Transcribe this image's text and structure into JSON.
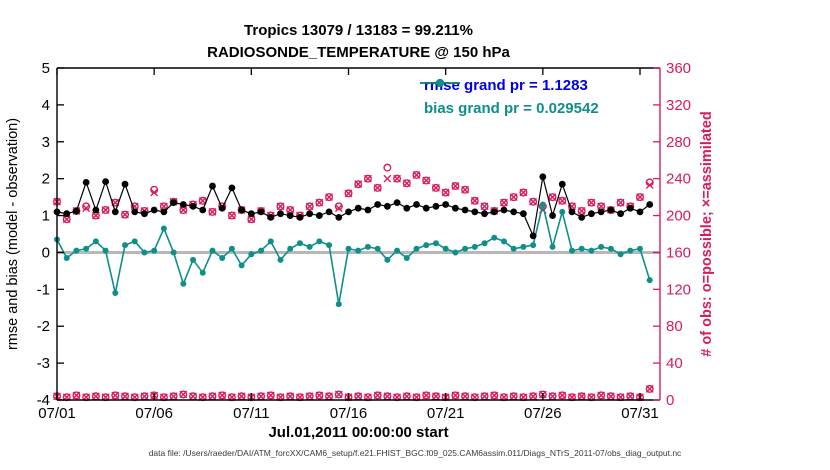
{
  "title": {
    "line1": "Tropics 13079 / 13183 = 99.211%",
    "line2": "RADIOSONDE_TEMPERATURE @ 150 hPa"
  },
  "axes": {
    "left_label": "rmse and bias (model - observation)",
    "right_label": "# of obs: o=possible; ×=assimilated",
    "x_label": "Jul.01,2011 00:00:00 start",
    "left_ticks": [
      -4,
      -3,
      -2,
      -1,
      0,
      1,
      2,
      3,
      4,
      5
    ],
    "right_ticks": [
      0,
      40,
      80,
      120,
      160,
      200,
      240,
      280,
      320,
      360
    ],
    "x_ticks": [
      "07/01",
      "07/06",
      "07/11",
      "07/16",
      "07/21",
      "07/26",
      "07/31"
    ],
    "x_tick_days": [
      1,
      6,
      11,
      16,
      21,
      26,
      31
    ],
    "left_range": [
      -4,
      5
    ],
    "right_range": [
      0,
      360
    ],
    "left_color": "#000000",
    "right_color": "#d81b60"
  },
  "legend": [
    {
      "label": "rmse grand pr = 1.1283",
      "line_color": "#000000",
      "text_color": "#0000e6"
    },
    {
      "label": "bias grand pr = 0.029542",
      "line_color": "#0f8f8a",
      "text_color": "#0f8f8a"
    }
  ],
  "footer": "data file: /Users/raeder/DAI/ATM_forcXX/CAM6_setup/f.e21.FHIST_BGC.f09_025.CAM6assim.011/Diags_NTrS_2011-07/obs_diag_output.nc",
  "chart_data": {
    "type": "line",
    "title": "Tropics 13079 / 13183 = 99.211% | RADIOSONDE_TEMPERATURE @ 150 hPa",
    "xlabel": "Jul.01,2011 00:00:00 start",
    "ylabel_left": "rmse and bias (model - observation)",
    "ylabel_right": "# of obs: o=possible; ×=assimilated",
    "ylim_left": [
      -4,
      5
    ],
    "ylim_right": [
      0,
      360
    ],
    "grid": false,
    "zero_line": true,
    "x_days": [
      1,
      1.5,
      2,
      2.5,
      3,
      3.5,
      4,
      4.5,
      5,
      5.5,
      6,
      6.5,
      7,
      7.5,
      8,
      8.5,
      9,
      9.5,
      10,
      10.5,
      11,
      11.5,
      12,
      12.5,
      13,
      13.5,
      14,
      14.5,
      15,
      15.5,
      16,
      16.5,
      17,
      17.5,
      18,
      18.5,
      19,
      19.5,
      20,
      20.5,
      21,
      21.5,
      22,
      22.5,
      23,
      23.5,
      24,
      24.5,
      25,
      25.5,
      26,
      26.5,
      27,
      27.5,
      28,
      28.5,
      29,
      29.5,
      30,
      30.5,
      31,
      31.5
    ],
    "series": [
      {
        "name": "rmse",
        "axis": "left",
        "color": "#000000",
        "marker": "filled-circle",
        "values": [
          1.1,
          1.05,
          1.12,
          1.9,
          1.15,
          1.92,
          1.1,
          1.85,
          1.1,
          1.05,
          1.15,
          1.1,
          1.35,
          1.3,
          1.25,
          1.15,
          1.8,
          1.2,
          1.75,
          1.15,
          1.05,
          1.1,
          0.95,
          1.05,
          1.0,
          0.95,
          1.05,
          1.0,
          1.1,
          0.95,
          1.1,
          1.2,
          1.15,
          1.3,
          1.25,
          1.35,
          1.2,
          1.3,
          1.2,
          1.25,
          1.3,
          1.2,
          1.15,
          1.1,
          1.05,
          1.1,
          1.15,
          1.1,
          1.05,
          0.45,
          2.05,
          1.0,
          1.85,
          1.1,
          0.95,
          1.05,
          1.1,
          1.15,
          1.05,
          1.2,
          1.1,
          1.3
        ]
      },
      {
        "name": "bias",
        "axis": "left",
        "color": "#0f8f8a",
        "marker": "filled-circle",
        "values": [
          0.35,
          -0.15,
          0.05,
          0.1,
          0.3,
          0.05,
          -1.1,
          0.2,
          0.3,
          0.0,
          0.05,
          0.65,
          0.0,
          -0.85,
          -0.2,
          -0.55,
          0.05,
          -0.15,
          0.1,
          -0.35,
          -0.05,
          0.05,
          0.3,
          -0.2,
          0.1,
          0.25,
          0.15,
          0.3,
          0.2,
          -1.4,
          0.1,
          0.05,
          0.15,
          0.1,
          -0.2,
          0.05,
          -0.15,
          0.1,
          0.2,
          0.25,
          0.1,
          0.0,
          0.1,
          0.15,
          0.25,
          0.4,
          0.3,
          0.1,
          0.15,
          0.2,
          1.3,
          0.15,
          1.1,
          0.05,
          0.1,
          0.05,
          0.15,
          0.1,
          -0.05,
          0.05,
          0.1,
          -0.75
        ]
      },
      {
        "name": "num_possible",
        "axis": "right",
        "color": "#d81b60",
        "marker": "o",
        "values": [
          215,
          196,
          205,
          210,
          200,
          206,
          214,
          201,
          210,
          205,
          228,
          210,
          215,
          206,
          212,
          216,
          204,
          210,
          200,
          206,
          196,
          205,
          200,
          210,
          206,
          200,
          210,
          214,
          220,
          210,
          224,
          234,
          240,
          230,
          252,
          240,
          235,
          244,
          238,
          230,
          225,
          232,
          228,
          216,
          210,
          205,
          214,
          220,
          225,
          215,
          210,
          220,
          216,
          210,
          205,
          214,
          210,
          206,
          214,
          210,
          220,
          236
        ]
      },
      {
        "name": "num_assimilated",
        "axis": "right",
        "color": "#d81b60",
        "marker": "x",
        "values": [
          215,
          196,
          205,
          208,
          200,
          206,
          214,
          201,
          210,
          205,
          225,
          210,
          215,
          206,
          212,
          216,
          204,
          210,
          200,
          206,
          196,
          205,
          200,
          210,
          206,
          200,
          210,
          214,
          220,
          208,
          224,
          234,
          240,
          230,
          240,
          240,
          235,
          244,
          238,
          230,
          225,
          232,
          228,
          216,
          210,
          205,
          214,
          220,
          225,
          215,
          206,
          220,
          216,
          210,
          205,
          214,
          210,
          206,
          214,
          210,
          220,
          233
        ]
      },
      {
        "name": "row_near_zero",
        "axis": "right",
        "color": "#d81b60",
        "marker": "ox",
        "values": [
          4,
          3,
          5,
          3,
          4,
          3,
          5,
          4,
          3,
          4,
          5,
          3,
          4,
          6,
          4,
          3,
          4,
          5,
          3,
          4,
          3,
          4,
          5,
          3,
          4,
          3,
          4,
          5,
          4,
          6,
          3,
          4,
          3,
          5,
          4,
          3,
          4,
          3,
          5,
          4,
          3,
          5,
          4,
          3,
          4,
          5,
          3,
          4,
          3,
          4,
          6,
          4,
          5,
          3,
          4,
          3,
          5,
          4,
          3,
          4,
          3,
          12
        ]
      }
    ]
  }
}
